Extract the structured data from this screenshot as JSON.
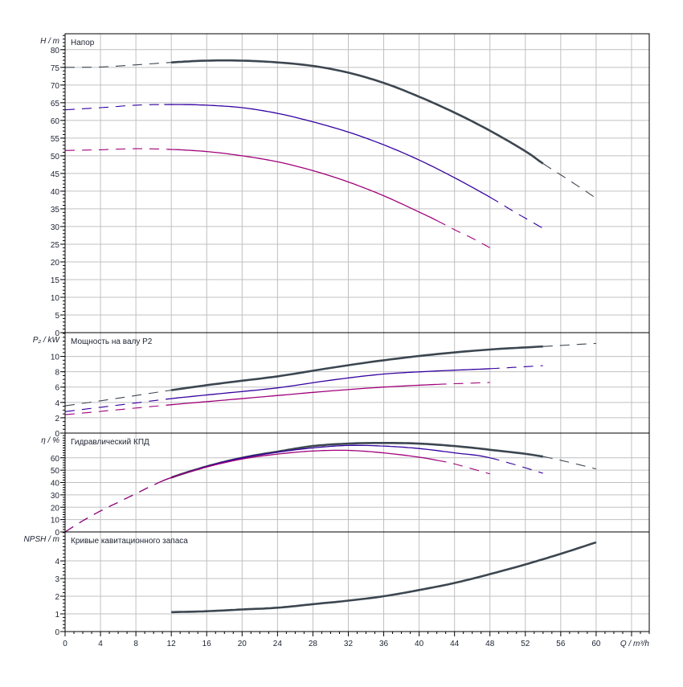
{
  "chart_data": {
    "type": "line",
    "x_axis": {
      "label": "Q / m³/h",
      "range": [
        0,
        66
      ],
      "ticks": [
        0,
        4,
        8,
        12,
        16,
        20,
        24,
        28,
        32,
        36,
        40,
        44,
        48,
        52,
        56,
        60
      ]
    },
    "colors": {
      "speed_high": "#3c4650",
      "speed_mid": "#3300a0",
      "speed_low": "#a0007a",
      "grid": "#c0c0c0"
    },
    "panels": [
      {
        "id": "head",
        "title": "Напор",
        "ylabel": "H / m",
        "ylim": [
          0,
          84.5
        ],
        "ticks": [
          0,
          5,
          10,
          15,
          20,
          25,
          30,
          35,
          40,
          45,
          50,
          55,
          60,
          65,
          70,
          75,
          80
        ],
        "minor": 1,
        "series": [
          {
            "name": "speed_high",
            "solid": [
              12,
              54
            ],
            "x": [
              0,
              4,
              8,
              12,
              16,
              20,
              24,
              28,
              32,
              36,
              40,
              44,
              48,
              52,
              54,
              57,
              60
            ],
            "y": [
              75,
              75.1,
              75.7,
              76.4,
              76.9,
              76.9,
              76.4,
              75.4,
              73.5,
              70.6,
              66.7,
              62.2,
              57.1,
              51.3,
              47.8,
              43,
              38
            ]
          },
          {
            "name": "speed_mid",
            "solid": [
              11,
              48
            ],
            "x": [
              0,
              4,
              8,
              12,
              16,
              20,
              24,
              28,
              32,
              36,
              40,
              44,
              48,
              51,
              54
            ],
            "y": [
              63,
              63.6,
              64.3,
              64.5,
              64.3,
              63.6,
              62,
              59.6,
              56.7,
              53.1,
              48.8,
              43.8,
              38.3,
              33.8,
              29.5
            ]
          },
          {
            "name": "speed_low",
            "solid": [
              11.5,
              42
            ],
            "x": [
              0,
              4,
              8,
              12,
              16,
              20,
              24,
              28,
              32,
              36,
              40,
              42,
              44,
              46,
              48
            ],
            "y": [
              51.5,
              51.7,
              52,
              51.8,
              51.2,
              50,
              48.3,
              45.8,
              42.6,
              38.7,
              34.1,
              31.7,
              29.1,
              26.7,
              24
            ]
          }
        ]
      },
      {
        "id": "power",
        "title": "Мощность на валу P2",
        "ylabel": "P₂ / kW",
        "ylim": [
          0,
          13.1
        ],
        "ticks": [
          0,
          2,
          4,
          6,
          8,
          10
        ],
        "minor": 0.5,
        "series": [
          {
            "name": "speed_high",
            "solid": [
              12,
              54
            ],
            "x": [
              0,
              6,
              12,
              18,
              24,
              30,
              36,
              42,
              48,
              54,
              60
            ],
            "y": [
              3.55,
              4.55,
              5.6,
              6.55,
              7.4,
              8.5,
              9.5,
              10.3,
              10.9,
              11.3,
              11.7
            ]
          },
          {
            "name": "speed_mid",
            "solid": [
              11,
              48
            ],
            "x": [
              0,
              6,
              12,
              18,
              24,
              30,
              36,
              42,
              48,
              54
            ],
            "y": [
              2.8,
              3.65,
              4.5,
              5.2,
              5.9,
              6.9,
              7.7,
              8.1,
              8.4,
              8.8
            ]
          },
          {
            "name": "speed_low",
            "solid": [
              11,
              42
            ],
            "x": [
              0,
              6,
              12,
              18,
              24,
              30,
              36,
              42,
              48
            ],
            "y": [
              2.4,
              3.05,
              3.7,
              4.3,
              4.9,
              5.5,
              6.0,
              6.35,
              6.6
            ]
          }
        ]
      },
      {
        "id": "efficiency",
        "title": "Гидравлический КПД",
        "ylabel": "η / %",
        "ylim": [
          0,
          80
        ],
        "ticks": [
          0,
          10,
          20,
          30,
          40,
          50,
          60
        ],
        "minor": 2,
        "series": [
          {
            "name": "speed_high",
            "solid": [
              12,
              54
            ],
            "x": [
              0,
              2,
              4,
              6,
              8,
              10,
              12,
              16,
              20,
              24,
              28,
              32,
              36,
              40,
              44,
              48,
              54,
              60
            ],
            "y": [
              0,
              9,
              17,
              24,
              31,
              38,
              44,
              53,
              60,
              65,
              69.5,
              71.5,
              72,
              71.5,
              69.5,
              66.5,
              61,
              51
            ]
          },
          {
            "name": "speed_mid",
            "solid": [
              11,
              48
            ],
            "x": [
              0,
              2,
              4,
              6,
              8,
              10,
              12,
              16,
              20,
              24,
              28,
              32,
              36,
              40,
              44,
              48,
              54
            ],
            "y": [
              0,
              9,
              17,
              24,
              31,
              38,
              44,
              53,
              60,
              64.5,
              68,
              70,
              69.5,
              67.5,
              64,
              60,
              47.5
            ]
          },
          {
            "name": "speed_low",
            "solid": [
              11,
              42
            ],
            "x": [
              0,
              2,
              4,
              6,
              8,
              10,
              12,
              16,
              20,
              24,
              28,
              32,
              36,
              40,
              42,
              44,
              48
            ],
            "y": [
              0,
              9,
              17,
              24,
              31,
              38,
              44,
              52.5,
              59,
              63,
              65.5,
              66,
              64,
              60.5,
              58,
              55,
              47
            ]
          }
        ]
      },
      {
        "id": "npsh",
        "title": "Кривые кавитационного запаса",
        "ylabel": "NPSH / m",
        "ylim": [
          0,
          5.64
        ],
        "ticks": [
          0,
          1,
          2,
          3,
          4
        ],
        "minor": 0.2,
        "series": [
          {
            "name": "speed_high",
            "solid": [
              12,
              60
            ],
            "x": [
              12,
              16,
              20,
              24,
              28,
              32,
              36,
              40,
              44,
              48,
              52,
              56,
              60
            ],
            "y": [
              1.1,
              1.15,
              1.25,
              1.35,
              1.55,
              1.75,
              2.0,
              2.35,
              2.75,
              3.25,
              3.8,
              4.4,
              5.05
            ]
          }
        ]
      }
    ]
  }
}
